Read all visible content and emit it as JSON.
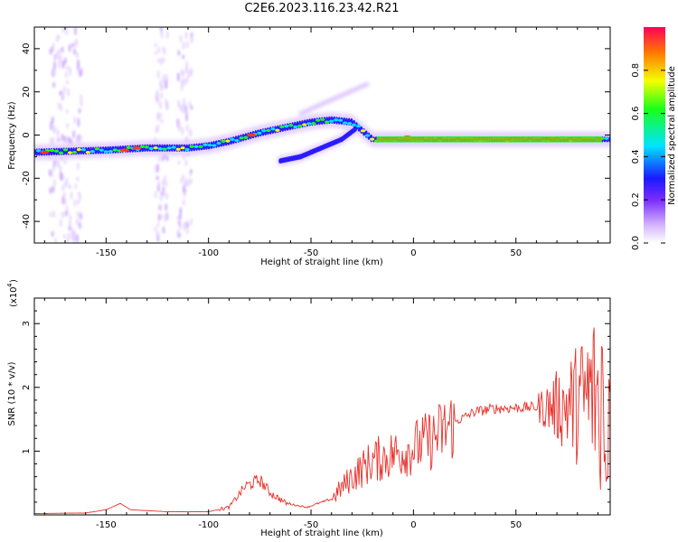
{
  "title": "C2E6.2023.116.23.42.R21",
  "chart_data": [
    {
      "type": "heatmap",
      "xlabel": "Height of straight line (km)",
      "ylabel": "Frequency (Hz)",
      "xlim": [
        -185,
        96
      ],
      "ylim": [
        -50,
        50
      ],
      "xticks": [
        -150,
        -100,
        -50,
        0,
        50
      ],
      "yticks": [
        -40,
        -20,
        0,
        20,
        40
      ],
      "colorbar": {
        "label": "Normalized spectral amplitude",
        "range": [
          0,
          1
        ],
        "ticks": [
          "0.0",
          "0.2",
          "0.4",
          "0.6",
          "0.8"
        ]
      },
      "ridge": [
        {
          "x": -185,
          "y": -8
        },
        {
          "x": -150,
          "y": -7
        },
        {
          "x": -130,
          "y": -6
        },
        {
          "x": -110,
          "y": -6
        },
        {
          "x": -100,
          "y": -5
        },
        {
          "x": -90,
          "y": -3
        },
        {
          "x": -75,
          "y": 1
        },
        {
          "x": -60,
          "y": 4
        },
        {
          "x": -50,
          "y": 6
        },
        {
          "x": -40,
          "y": 7
        },
        {
          "x": -30,
          "y": 6
        },
        {
          "x": -25,
          "y": 2
        },
        {
          "x": -20,
          "y": -2
        },
        {
          "x": 0,
          "y": -2
        },
        {
          "x": 50,
          "y": -2
        },
        {
          "x": 90,
          "y": -2
        }
      ],
      "secondary_ridge": [
        {
          "x": -65,
          "y": -12
        },
        {
          "x": -55,
          "y": -10
        },
        {
          "x": -45,
          "y": -6
        },
        {
          "x": -35,
          "y": -2
        },
        {
          "x": -28,
          "y": 3
        }
      ]
    },
    {
      "type": "line",
      "xlabel": "Height of straight line (km)",
      "ylabel": "SNR (10 * v/v)",
      "yunit": "(x10",
      "yunit_exp": "4",
      "yunit_close": ")",
      "xlim": [
        -185,
        96
      ],
      "ylim": [
        0,
        3.4
      ],
      "xticks": [
        -150,
        -100,
        -50,
        0,
        50
      ],
      "yticks": [
        1,
        2,
        3
      ],
      "series": [
        {
          "color": "#e8302a",
          "points": [
            {
              "x": -185,
              "y": 0.02
            },
            {
              "x": -160,
              "y": 0.03
            },
            {
              "x": -150,
              "y": 0.08
            },
            {
              "x": -143,
              "y": 0.18
            },
            {
              "x": -138,
              "y": 0.08
            },
            {
              "x": -120,
              "y": 0.05
            },
            {
              "x": -100,
              "y": 0.05
            },
            {
              "x": -90,
              "y": 0.12
            },
            {
              "x": -82,
              "y": 0.45
            },
            {
              "x": -75,
              "y": 0.55
            },
            {
              "x": -70,
              "y": 0.35
            },
            {
              "x": -62,
              "y": 0.18
            },
            {
              "x": -52,
              "y": 0.12
            },
            {
              "x": -40,
              "y": 0.25
            },
            {
              "x": -30,
              "y": 0.6
            },
            {
              "x": -20,
              "y": 0.85
            },
            {
              "x": -10,
              "y": 0.95
            },
            {
              "x": 0,
              "y": 1.05
            },
            {
              "x": 10,
              "y": 1.2
            },
            {
              "x": 20,
              "y": 1.45
            },
            {
              "x": 30,
              "y": 1.62
            },
            {
              "x": 40,
              "y": 1.67
            },
            {
              "x": 50,
              "y": 1.68
            },
            {
              "x": 60,
              "y": 1.69
            },
            {
              "x": 70,
              "y": 1.7
            },
            {
              "x": 80,
              "y": 1.75
            },
            {
              "x": 88,
              "y": 1.9
            },
            {
              "x": 94,
              "y": 1.8
            }
          ]
        }
      ]
    }
  ]
}
